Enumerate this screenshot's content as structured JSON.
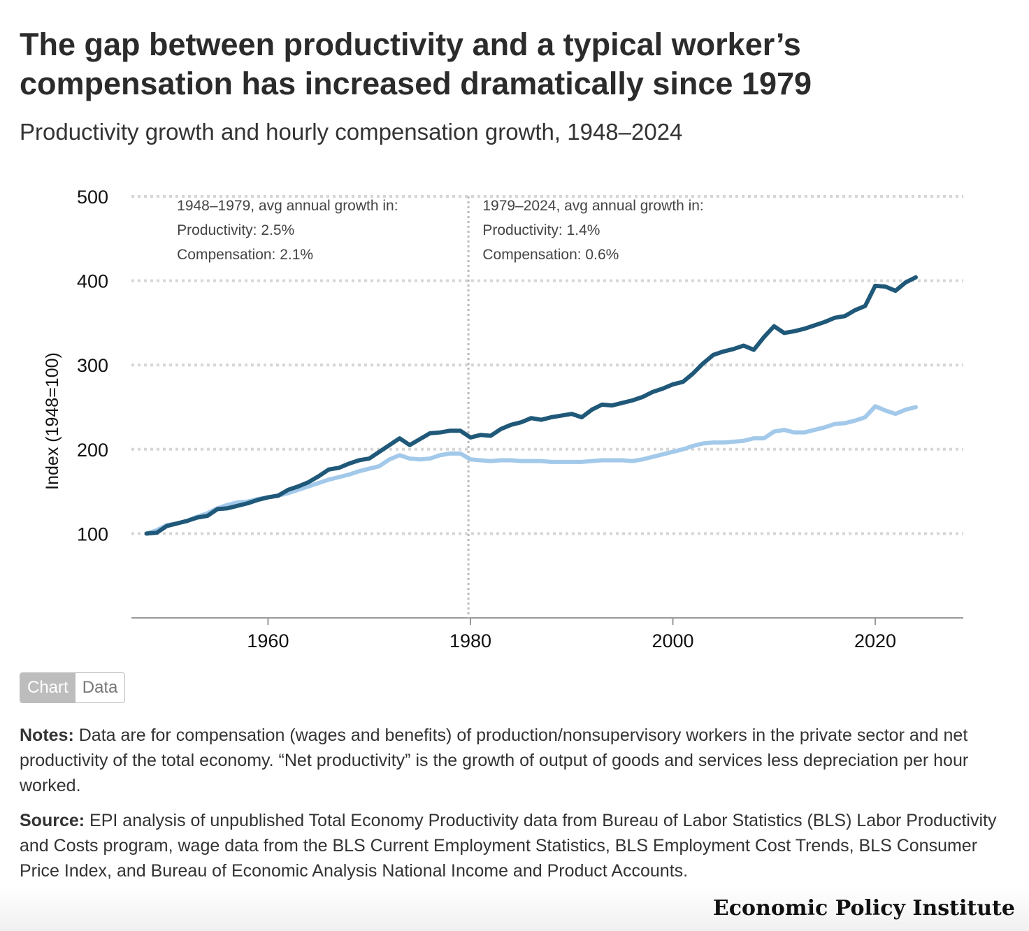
{
  "title": "The gap between productivity and a typical worker’s compensation has increased dramatically since 1979",
  "subtitle": "Productivity growth and hourly compensation growth, 1948–2024",
  "toggle": {
    "chart_label": "Chart",
    "data_label": "Data"
  },
  "notes": {
    "label": "Notes:",
    "text": "Data are for compensation (wages and benefits) of production/nonsupervisory workers in the private sector and net productivity of the total economy. “Net productivity” is the growth of output of goods and services less depreciation per hour worked."
  },
  "source": {
    "label": "Source:",
    "text": "EPI analysis of unpublished Total Economy Productivity data from Bureau of Labor Statistics (BLS) Labor Productivity and Costs program, wage data from the BLS Current Employment Statistics, BLS Employment Cost Trends, BLS Consumer Price Index, and Bureau of Economic Analysis National Income and Product Accounts."
  },
  "brand": "Economic Policy Institute",
  "colors": {
    "productivity": "#1f5878",
    "compensation": "#a3c9ea",
    "grid": "#d6d6d6",
    "axis": "#999999"
  },
  "chart_data": {
    "type": "line",
    "ylabel": "Index (1948=100)",
    "xlabel": "",
    "xlim": [
      1946.5,
      2028.7
    ],
    "ylim": [
      0,
      500
    ],
    "yticks": [
      100,
      200,
      300,
      400,
      500
    ],
    "xticks": [
      1960,
      1980,
      2000,
      2020
    ],
    "grid": true,
    "reference_line_x": 1979.8,
    "annotations": [
      {
        "lines": [
          "1948–1979, avg annual growth in:",
          "Productivity: 2.5%",
          "Compensation: 2.1%"
        ],
        "anchor_x": 1951.0
      },
      {
        "lines": [
          "1979–2024, avg annual growth in:",
          "Productivity: 1.4%",
          "Compensation: 0.6%"
        ],
        "anchor_x": 1981.2
      }
    ],
    "series": [
      {
        "name": "Productivity",
        "x": [
          1948,
          1949,
          1950,
          1951,
          1952,
          1953,
          1954,
          1955,
          1956,
          1957,
          1958,
          1959,
          1960,
          1961,
          1962,
          1963,
          1964,
          1965,
          1966,
          1967,
          1968,
          1969,
          1970,
          1971,
          1972,
          1973,
          1974,
          1975,
          1976,
          1977,
          1978,
          1979,
          1980,
          1981,
          1982,
          1983,
          1984,
          1985,
          1986,
          1987,
          1988,
          1989,
          1990,
          1991,
          1992,
          1993,
          1994,
          1995,
          1996,
          1997,
          1998,
          1999,
          2000,
          2001,
          2002,
          2003,
          2004,
          2005,
          2006,
          2007,
          2008,
          2009,
          2010,
          2011,
          2012,
          2013,
          2014,
          2015,
          2016,
          2017,
          2018,
          2019,
          2020,
          2021,
          2022,
          2023,
          2024
        ],
        "values": [
          100,
          101,
          109,
          112,
          115,
          119,
          121,
          129,
          130,
          133,
          136,
          140,
          143,
          145,
          152,
          156,
          161,
          168,
          176,
          178,
          183,
          187,
          189,
          197,
          205,
          213,
          205,
          212,
          219,
          220,
          222,
          222,
          214,
          217,
          216,
          224,
          229,
          232,
          237,
          235,
          238,
          240,
          242,
          238,
          247,
          253,
          252,
          255,
          258,
          262,
          268,
          272,
          277,
          280,
          290,
          302,
          312,
          316,
          319,
          323,
          318,
          333,
          346,
          338,
          340,
          343,
          347,
          351,
          356,
          358,
          365,
          370,
          394,
          393,
          388,
          398,
          404
        ]
      },
      {
        "name": "Compensation",
        "x": [
          1948,
          1949,
          1950,
          1951,
          1952,
          1953,
          1954,
          1955,
          1956,
          1957,
          1958,
          1959,
          1960,
          1961,
          1962,
          1963,
          1964,
          1965,
          1966,
          1967,
          1968,
          1969,
          1970,
          1971,
          1972,
          1973,
          1974,
          1975,
          1976,
          1977,
          1978,
          1979,
          1980,
          1981,
          1982,
          1983,
          1984,
          1985,
          1986,
          1987,
          1988,
          1989,
          1990,
          1991,
          1992,
          1993,
          1994,
          1995,
          1996,
          1997,
          1998,
          1999,
          2000,
          2001,
          2002,
          2003,
          2004,
          2005,
          2006,
          2007,
          2008,
          2009,
          2010,
          2011,
          2012,
          2013,
          2014,
          2015,
          2016,
          2017,
          2018,
          2019,
          2020,
          2021,
          2022,
          2023,
          2024
        ],
        "values": [
          100,
          104,
          110,
          112,
          115,
          120,
          124,
          130,
          134,
          137,
          138,
          141,
          143,
          145,
          148,
          152,
          156,
          160,
          164,
          167,
          170,
          174,
          177,
          180,
          188,
          193,
          189,
          188,
          189,
          193,
          195,
          195,
          188,
          187,
          186,
          187,
          187,
          186,
          186,
          186,
          185,
          185,
          185,
          185,
          186,
          187,
          187,
          187,
          186,
          188,
          191,
          194,
          197,
          200,
          204,
          207,
          208,
          208,
          209,
          210,
          213,
          213,
          221,
          223,
          220,
          220,
          223,
          226,
          230,
          231,
          234,
          238,
          251,
          246,
          242,
          247,
          250
        ]
      }
    ]
  }
}
